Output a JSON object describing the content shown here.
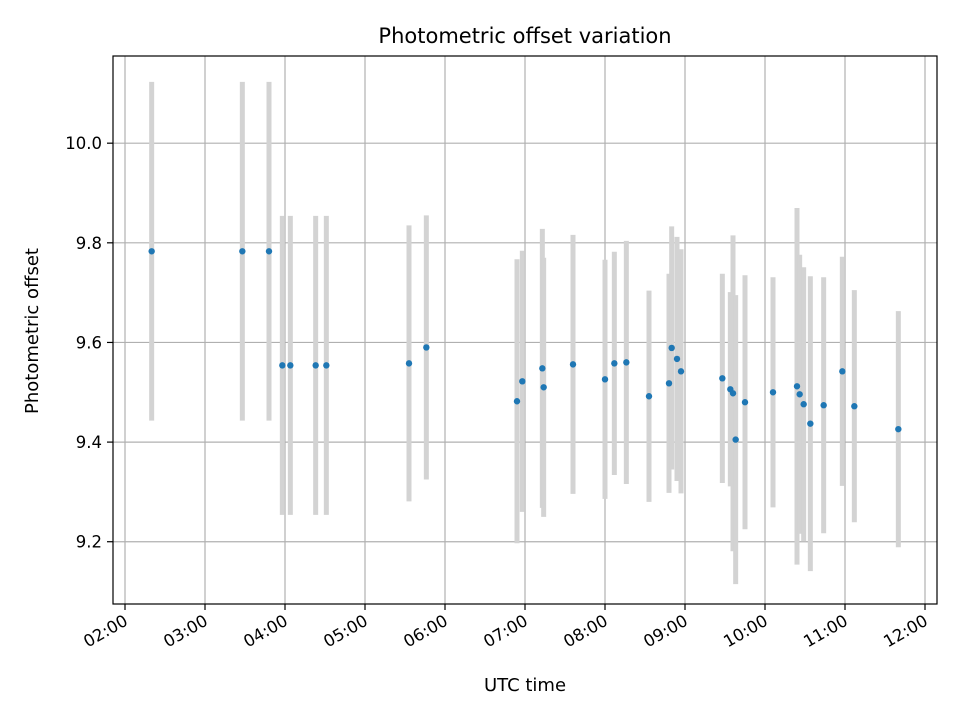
{
  "chart_data": {
    "type": "scatter",
    "title": "Photometric offset variation",
    "xlabel": "UTC time",
    "ylabel": "Photometric offset",
    "x_ticks": [
      "02:00",
      "03:00",
      "04:00",
      "05:00",
      "06:00",
      "07:00",
      "08:00",
      "09:00",
      "10:00",
      "11:00",
      "12:00"
    ],
    "y_ticks": [
      "9.2",
      "9.4",
      "9.6",
      "9.8",
      "10.0"
    ],
    "xlim": [
      "01:51",
      "12:09"
    ],
    "ylim": [
      9.075,
      10.175
    ],
    "grid": true,
    "legend": false,
    "colors": {
      "point": "#1f77b4",
      "errorbar": "#d3d3d3",
      "grid": "#b0b0b0"
    },
    "series": [
      {
        "points": [
          {
            "time": "02:20",
            "y": 9.783,
            "err": 0.34
          },
          {
            "time": "03:28",
            "y": 9.783,
            "err": 0.34
          },
          {
            "time": "03:48",
            "y": 9.783,
            "err": 0.34
          },
          {
            "time": "03:58",
            "y": 9.554,
            "err": 0.3
          },
          {
            "time": "04:04",
            "y": 9.554,
            "err": 0.3
          },
          {
            "time": "04:23",
            "y": 9.554,
            "err": 0.3
          },
          {
            "time": "04:31",
            "y": 9.554,
            "err": 0.3
          },
          {
            "time": "05:33",
            "y": 9.558,
            "err": 0.277
          },
          {
            "time": "05:46",
            "y": 9.59,
            "err": 0.265
          },
          {
            "time": "06:54",
            "y": 9.482,
            "err": 0.285
          },
          {
            "time": "06:58",
            "y": 9.522,
            "err": 0.262
          },
          {
            "time": "07:13",
            "y": 9.548,
            "err": 0.28
          },
          {
            "time": "07:14",
            "y": 9.51,
            "err": 0.26
          },
          {
            "time": "07:36",
            "y": 9.556,
            "err": 0.26
          },
          {
            "time": "08:00",
            "y": 9.526,
            "err": 0.24
          },
          {
            "time": "08:07",
            "y": 9.558,
            "err": 0.224
          },
          {
            "time": "08:16",
            "y": 9.56,
            "err": 0.244
          },
          {
            "time": "08:33",
            "y": 9.492,
            "err": 0.212
          },
          {
            "time": "08:48",
            "y": 9.518,
            "err": 0.22
          },
          {
            "time": "08:50",
            "y": 9.589,
            "err": 0.244
          },
          {
            "time": "08:54",
            "y": 9.567,
            "err": 0.245
          },
          {
            "time": "08:57",
            "y": 9.542,
            "err": 0.245
          },
          {
            "time": "09:28",
            "y": 9.528,
            "err": 0.21
          },
          {
            "time": "09:34",
            "y": 9.506,
            "err": 0.195
          },
          {
            "time": "09:36",
            "y": 9.498,
            "err": 0.317
          },
          {
            "time": "09:38",
            "y": 9.405,
            "err": 0.29
          },
          {
            "time": "09:45",
            "y": 9.48,
            "err": 0.255
          },
          {
            "time": "10:06",
            "y": 9.5,
            "err": 0.231
          },
          {
            "time": "10:24",
            "y": 9.512,
            "err": 0.358
          },
          {
            "time": "10:26",
            "y": 9.496,
            "err": 0.28
          },
          {
            "time": "10:29",
            "y": 9.476,
            "err": 0.275
          },
          {
            "time": "10:34",
            "y": 9.437,
            "err": 0.296
          },
          {
            "time": "10:44",
            "y": 9.474,
            "err": 0.257
          },
          {
            "time": "10:58",
            "y": 9.542,
            "err": 0.23
          },
          {
            "time": "11:07",
            "y": 9.472,
            "err": 0.233
          },
          {
            "time": "11:40",
            "y": 9.426,
            "err": 0.237
          }
        ]
      }
    ]
  }
}
